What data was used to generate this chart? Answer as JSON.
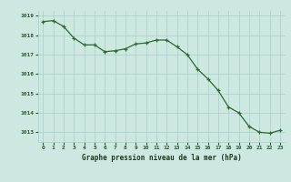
{
  "hours": [
    0,
    1,
    2,
    3,
    4,
    5,
    6,
    7,
    8,
    9,
    10,
    11,
    12,
    13,
    14,
    15,
    16,
    17,
    18,
    19,
    20,
    21,
    22,
    23
  ],
  "pressure": [
    1018.7,
    1018.75,
    1018.45,
    1017.85,
    1017.5,
    1017.5,
    1017.15,
    1017.2,
    1017.3,
    1017.55,
    1017.6,
    1017.75,
    1017.75,
    1017.4,
    1017.0,
    1016.25,
    1015.75,
    1015.15,
    1014.3,
    1014.0,
    1013.3,
    1013.0,
    1012.95,
    1013.1
  ],
  "ylim_min": 1012.5,
  "ylim_max": 1019.25,
  "yticks": [
    1013,
    1014,
    1015,
    1016,
    1017,
    1018,
    1019
  ],
  "line_color": "#2d6a2d",
  "marker_color": "#2d6a2d",
  "bg_color": "#cce8e0",
  "grid_color": "#a8cfc8",
  "tick_label_color": "#2d5a2d",
  "xlabel": "Graphe pression niveau de la mer (hPa)",
  "xlabel_color": "#1a3a1a"
}
